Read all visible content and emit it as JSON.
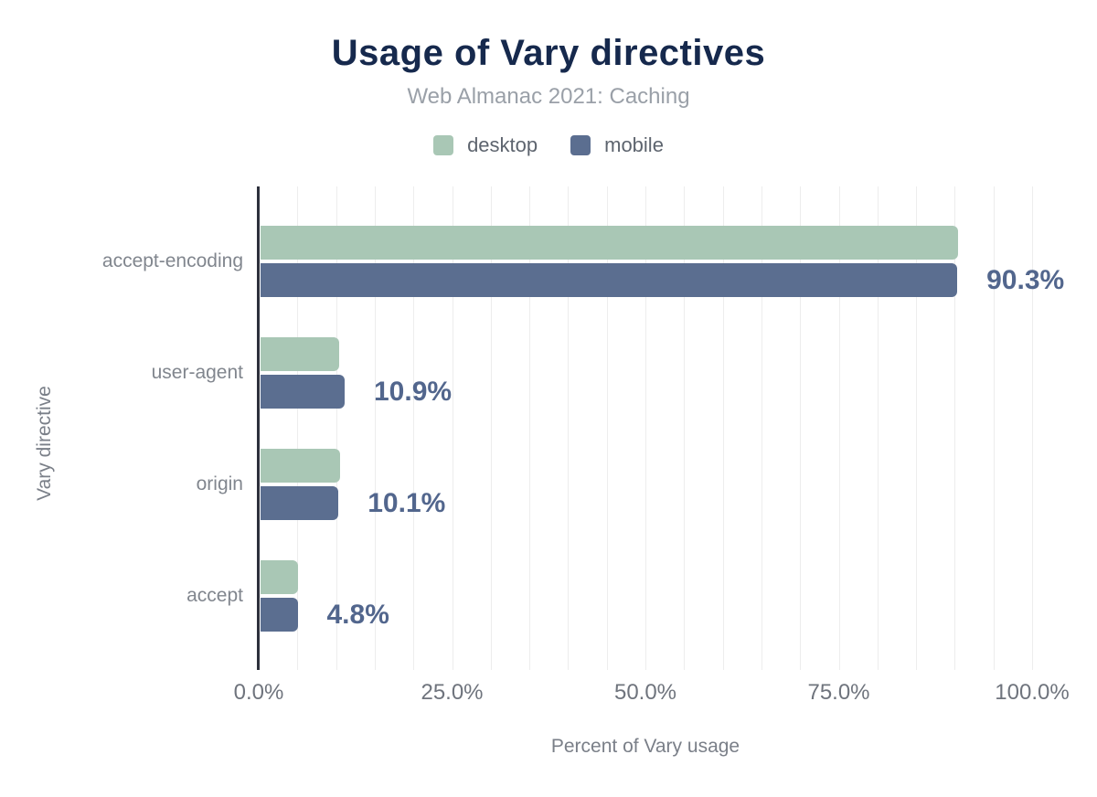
{
  "title": "Usage of Vary directives",
  "subtitle": "Web Almanac 2021: Caching",
  "legend": {
    "items": [
      {
        "label": "desktop",
        "color": "#a9c7b5"
      },
      {
        "label": "mobile",
        "color": "#5b6e90"
      }
    ]
  },
  "chart_data": {
    "type": "bar",
    "orientation": "horizontal",
    "title": "Usage of Vary directives",
    "subtitle": "Web Almanac 2021: Caching",
    "xlabel": "Percent of Vary usage",
    "ylabel": "Vary directive",
    "xlim": [
      0,
      100
    ],
    "x_ticks": [
      "0.0%",
      "25.0%",
      "50.0%",
      "75.0%",
      "100.0%"
    ],
    "x_tick_values": [
      0,
      25,
      50,
      75,
      100
    ],
    "grid": "vertical minor gridlines every 5%, no x-axis line, dark y-axis line",
    "legend_position": "top",
    "categories": [
      "accept-encoding",
      "user-agent",
      "origin",
      "accept"
    ],
    "series": [
      {
        "name": "desktop",
        "color": "#a9c7b5",
        "values": [
          90.4,
          10.2,
          10.3,
          4.9
        ]
      },
      {
        "name": "mobile",
        "color": "#5b6e90",
        "values": [
          90.3,
          10.9,
          10.1,
          4.8
        ]
      }
    ],
    "data_labels": {
      "series": "mobile",
      "texts": [
        "90.3%",
        "10.9%",
        "10.1%",
        "4.8%"
      ]
    }
  },
  "colors": {
    "title": "#16294d",
    "subtitle": "#9aa0a8",
    "data_label": "#52668d",
    "axis_line": "#2d303c",
    "gridline": "#ededed",
    "tick_label": "#6f747d",
    "category_label": "#81868e",
    "axis_title": "#7a7f88",
    "background": "#ffffff"
  }
}
